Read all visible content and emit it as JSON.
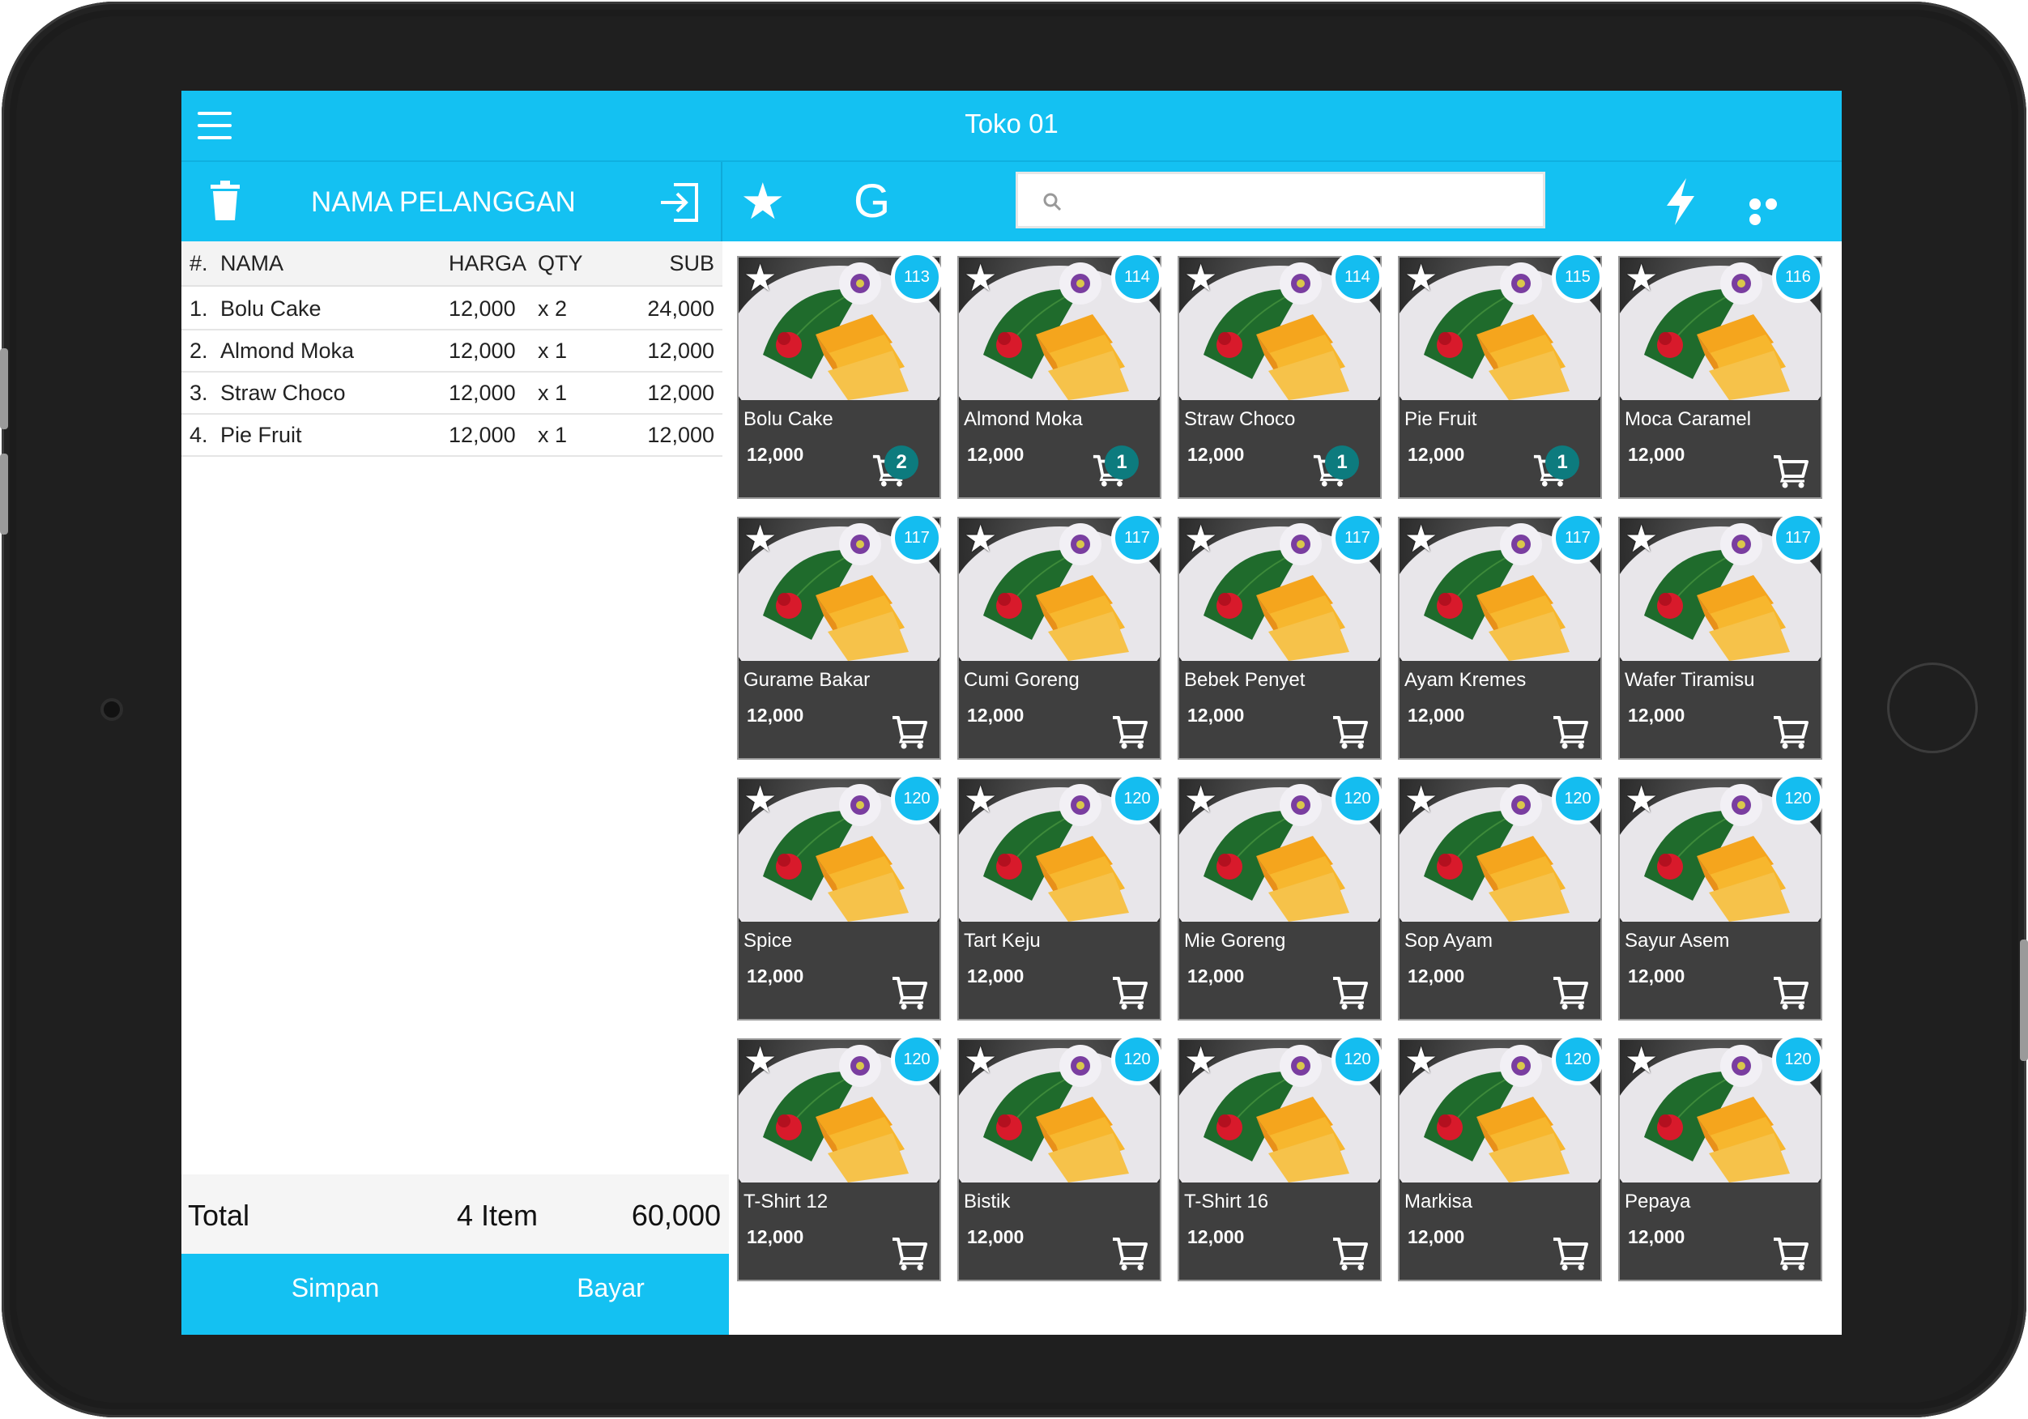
{
  "app": {
    "title": "Toko 01"
  },
  "toolbar": {
    "customer_label": "NAMA PELANGGAN",
    "search_placeholder": "",
    "star_label": "★",
    "g_label": "G"
  },
  "order": {
    "headers": {
      "num": "#.",
      "name": "NAMA",
      "harga": "HARGA",
      "qty": "QTY",
      "sub": "SUB"
    },
    "rows": [
      {
        "num": "1.",
        "name": "Bolu Cake",
        "harga": "12,000",
        "qty": "x 2",
        "sub": "24,000"
      },
      {
        "num": "2.",
        "name": "Almond Moka",
        "harga": "12,000",
        "qty": "x 1",
        "sub": "12,000"
      },
      {
        "num": "3.",
        "name": "Straw Choco",
        "harga": "12,000",
        "qty": "x 1",
        "sub": "12,000"
      },
      {
        "num": "4.",
        "name": "Pie Fruit",
        "harga": "12,000",
        "qty": "x 1",
        "sub": "12,000"
      }
    ],
    "total_label": "Total",
    "total_items": "4 Item",
    "total_amount": "60,000",
    "save_label": "Simpan",
    "pay_label": "Bayar"
  },
  "products": [
    {
      "name": "Bolu Cake",
      "price": "12,000",
      "stock": "113",
      "in_cart": "2"
    },
    {
      "name": "Almond Moka",
      "price": "12,000",
      "stock": "114",
      "in_cart": "1"
    },
    {
      "name": "Straw Choco",
      "price": "12,000",
      "stock": "114",
      "in_cart": "1"
    },
    {
      "name": "Pie Fruit",
      "price": "12,000",
      "stock": "115",
      "in_cart": "1"
    },
    {
      "name": "Moca Caramel",
      "price": "12,000",
      "stock": "116",
      "in_cart": ""
    },
    {
      "name": "Gurame Bakar",
      "price": "12,000",
      "stock": "117",
      "in_cart": ""
    },
    {
      "name": "Cumi Goreng",
      "price": "12,000",
      "stock": "117",
      "in_cart": ""
    },
    {
      "name": "Bebek Penyet",
      "price": "12,000",
      "stock": "117",
      "in_cart": ""
    },
    {
      "name": "Ayam Kremes",
      "price": "12,000",
      "stock": "117",
      "in_cart": ""
    },
    {
      "name": "Wafer Tiramisu",
      "price": "12,000",
      "stock": "117",
      "in_cart": ""
    },
    {
      "name": "Spice",
      "price": "12,000",
      "stock": "120",
      "in_cart": ""
    },
    {
      "name": "Tart Keju",
      "price": "12,000",
      "stock": "120",
      "in_cart": ""
    },
    {
      "name": "Mie Goreng",
      "price": "12,000",
      "stock": "120",
      "in_cart": ""
    },
    {
      "name": "Sop Ayam",
      "price": "12,000",
      "stock": "120",
      "in_cart": ""
    },
    {
      "name": "Sayur Asem",
      "price": "12,000",
      "stock": "120",
      "in_cart": ""
    },
    {
      "name": "T-Shirt 12",
      "price": "12,000",
      "stock": "120",
      "in_cart": ""
    },
    {
      "name": "Bistik",
      "price": "12,000",
      "stock": "120",
      "in_cart": ""
    },
    {
      "name": "T-Shirt 16",
      "price": "12,000",
      "stock": "120",
      "in_cart": ""
    },
    {
      "name": "Markisa",
      "price": "12,000",
      "stock": "120",
      "in_cart": ""
    },
    {
      "name": "Pepaya",
      "price": "12,000",
      "stock": "120",
      "in_cart": ""
    }
  ],
  "icons": {
    "menu": "hamburger-menu-icon",
    "trash": "trash-icon",
    "login": "login-icon",
    "star": "star-icon",
    "search": "search-icon",
    "bolt": "lightning-icon",
    "more": "more-icon",
    "cart": "cart-icon"
  },
  "colors": {
    "accent": "#14c1f2",
    "card": "#3f3f3f",
    "cart_badge": "#0d7b7e"
  }
}
